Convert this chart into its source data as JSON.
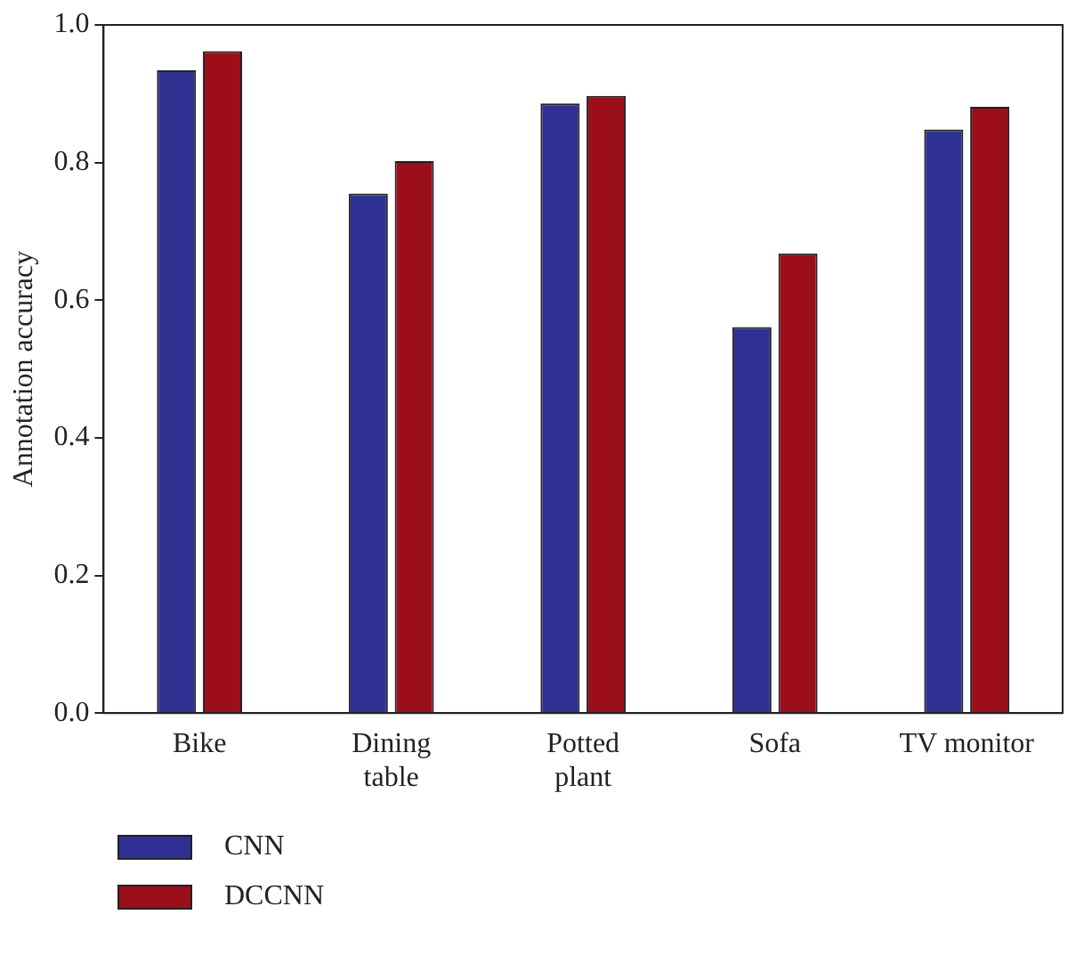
{
  "chart_data": {
    "type": "bar",
    "ylabel": "Annotation accuracy",
    "categories": [
      "Bike",
      "Dining\ntable",
      "Potted\nplant",
      "Sofa",
      "TV monitor"
    ],
    "series": [
      {
        "name": "CNN",
        "color": "#2e3192",
        "values": [
          0.934,
          0.755,
          0.886,
          0.561,
          0.848
        ]
      },
      {
        "name": "DCCNN",
        "color": "#9b0e1a",
        "values": [
          0.962,
          0.802,
          0.897,
          0.668,
          0.881
        ]
      }
    ],
    "ylim": [
      0,
      1
    ],
    "yticks": [
      {
        "value": 0,
        "label": "0.0"
      },
      {
        "value": 0.2,
        "label": "0.2"
      },
      {
        "value": 0.4,
        "label": "0.4"
      },
      {
        "value": 0.6,
        "label": "0.6"
      },
      {
        "value": 0.8,
        "label": "0.8"
      },
      {
        "value": 1,
        "label": "1.0"
      }
    ],
    "grid": false,
    "legend": "bottom left"
  }
}
